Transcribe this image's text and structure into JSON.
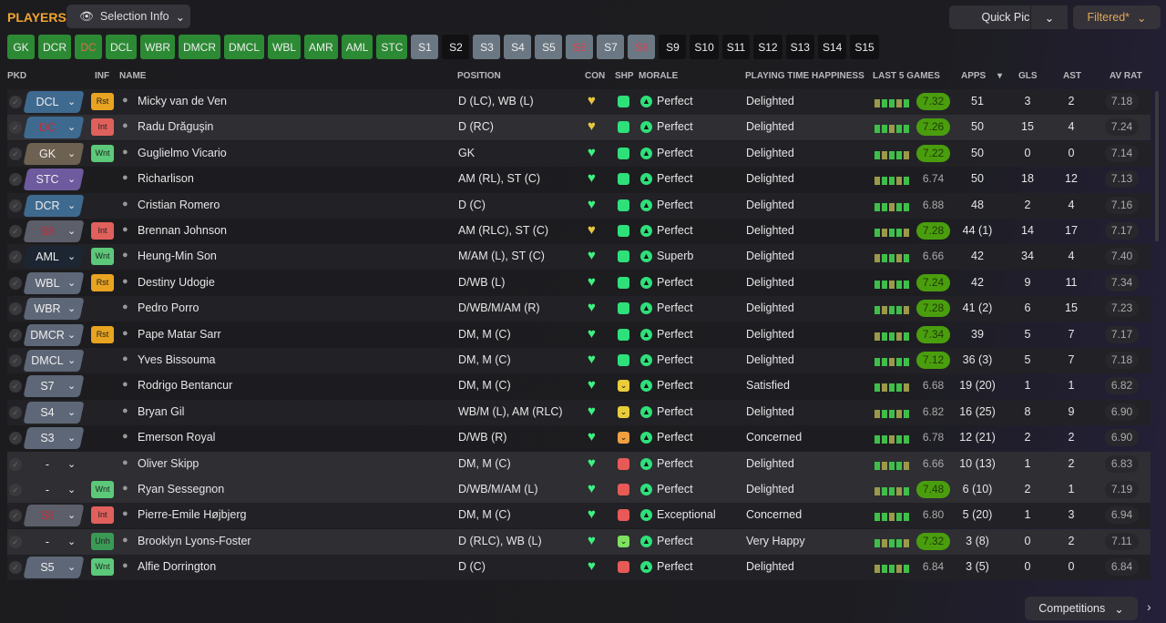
{
  "header": {
    "title": "PLAYERS",
    "selection_info": "Selection Info",
    "quick_pick": "Quick Pick",
    "filtered": "Filtered*",
    "competitions": "Competitions"
  },
  "chips": [
    {
      "label": "GK",
      "style": "g"
    },
    {
      "label": "DCR",
      "style": "g"
    },
    {
      "label": "DC",
      "style": "g",
      "color": "#e06a4a"
    },
    {
      "label": "DCL",
      "style": "g"
    },
    {
      "label": "WBR",
      "style": "g"
    },
    {
      "label": "DMCR",
      "style": "g"
    },
    {
      "label": "DMCL",
      "style": "g"
    },
    {
      "label": "WBL",
      "style": "g"
    },
    {
      "label": "AMR",
      "style": "g"
    },
    {
      "label": "AML",
      "style": "g"
    },
    {
      "label": "STC",
      "style": "g"
    },
    {
      "label": "S1",
      "style": "s"
    },
    {
      "label": "S2",
      "style": "e"
    },
    {
      "label": "S3",
      "style": "s"
    },
    {
      "label": "S4",
      "style": "s"
    },
    {
      "label": "S5",
      "style": "s"
    },
    {
      "label": "S6",
      "style": "s",
      "color": "#e04050"
    },
    {
      "label": "S7",
      "style": "s"
    },
    {
      "label": "S8",
      "style": "s",
      "color": "#e04050"
    },
    {
      "label": "S9",
      "style": "e"
    },
    {
      "label": "S10",
      "style": "e"
    },
    {
      "label": "S11",
      "style": "e"
    },
    {
      "label": "S12",
      "style": "e"
    },
    {
      "label": "S13",
      "style": "e"
    },
    {
      "label": "S14",
      "style": "e"
    },
    {
      "label": "S15",
      "style": "e"
    }
  ],
  "columns": {
    "pkd": "PKD",
    "inf": "INF",
    "name": "NAME",
    "position": "POSITION",
    "con": "CON",
    "shp": "SHP",
    "morale": "MORALE",
    "pth": "PLAYING TIME HAPPINESS",
    "last5": "LAST 5 GAMES",
    "apps": "APPS",
    "gls": "GLS",
    "ast": "AST",
    "avrat": "AV RAT"
  },
  "colors": {
    "accent": "#f2a530",
    "good_pill": "#4a9e0e"
  },
  "players": [
    {
      "pos": "DCL",
      "pos_style": "blue",
      "inf": "Rst",
      "name": "Micky van de Ven",
      "position": "D (LC), WB (L)",
      "con": "yellow",
      "shp": "up",
      "morale": "Perfect",
      "pth": "Delighted",
      "last5": "7.32",
      "l5good": true,
      "apps": "51",
      "gls": "3",
      "ast": "2",
      "avrat": "7.18",
      "avgood": true
    },
    {
      "pos": "DC",
      "pos_style": "blue",
      "pos_red": true,
      "inf": "Int",
      "name": "Radu Drăguşin",
      "position": "D (RC)",
      "con": "yellow",
      "shp": "up",
      "morale": "Perfect",
      "pth": "Delighted",
      "last5": "7.26",
      "l5good": true,
      "apps": "50",
      "gls": "15",
      "ast": "4",
      "avrat": "7.24",
      "avgood": true
    },
    {
      "pos": "GK",
      "pos_style": "gk",
      "inf": "Wnt",
      "name": "Guglielmo Vicario",
      "position": "GK",
      "con": "green",
      "shp": "up",
      "morale": "Perfect",
      "pth": "Delighted",
      "last5": "7.22",
      "l5good": true,
      "apps": "50",
      "gls": "0",
      "ast": "0",
      "avrat": "7.14",
      "avgood": true
    },
    {
      "pos": "STC",
      "pos_style": "purple",
      "inf": "",
      "name": "Richarlison",
      "position": "AM (RL), ST (C)",
      "con": "green",
      "shp": "up",
      "morale": "Perfect",
      "pth": "Delighted",
      "last5": "6.74",
      "l5good": false,
      "apps": "50",
      "gls": "18",
      "ast": "12",
      "avrat": "7.13",
      "avgood": true
    },
    {
      "pos": "DCR",
      "pos_style": "blue",
      "inf": "",
      "name": "Cristian Romero",
      "position": "D (C)",
      "con": "green",
      "shp": "up",
      "morale": "Perfect",
      "pth": "Delighted",
      "last5": "6.88",
      "l5good": false,
      "apps": "48",
      "gls": "2",
      "ast": "4",
      "avrat": "7.16",
      "avgood": true
    },
    {
      "pos": "S8",
      "pos_style": "grey",
      "pos_red": true,
      "inf": "Int",
      "name": "Brennan Johnson",
      "position": "AM (RLC), ST (C)",
      "con": "yellow",
      "shp": "up",
      "morale": "Perfect",
      "pth": "Delighted",
      "last5": "7.28",
      "l5good": true,
      "apps": "44 (1)",
      "gls": "14",
      "ast": "17",
      "avrat": "7.17",
      "avgood": true
    },
    {
      "pos": "AML",
      "pos_style": "dark",
      "inf": "Wnt",
      "name": "Heung-Min Son",
      "position": "M/AM (L), ST (C)",
      "con": "green",
      "shp": "up",
      "morale": "Superb",
      "pth": "Delighted",
      "last5": "6.66",
      "l5good": false,
      "apps": "42",
      "gls": "34",
      "ast": "4",
      "avrat": "7.40",
      "avgood": true
    },
    {
      "pos": "WBL",
      "pos_style": "slate",
      "inf": "Rst",
      "name": "Destiny Udogie",
      "position": "D/WB (L)",
      "con": "green",
      "shp": "up",
      "morale": "Perfect",
      "pth": "Delighted",
      "last5": "7.24",
      "l5good": true,
      "apps": "42",
      "gls": "9",
      "ast": "11",
      "avrat": "7.34",
      "avgood": true
    },
    {
      "pos": "WBR",
      "pos_style": "slate",
      "inf": "",
      "name": "Pedro Porro",
      "position": "D/WB/M/AM (R)",
      "con": "green",
      "shp": "up",
      "morale": "Perfect",
      "pth": "Delighted",
      "last5": "7.28",
      "l5good": true,
      "apps": "41 (2)",
      "gls": "6",
      "ast": "15",
      "avrat": "7.23",
      "avgood": true
    },
    {
      "pos": "DMCR",
      "pos_style": "slate",
      "inf": "Rst",
      "name": "Pape Matar Sarr",
      "position": "DM, M (C)",
      "con": "green",
      "shp": "up",
      "morale": "Perfect",
      "pth": "Delighted",
      "last5": "7.34",
      "l5good": true,
      "apps": "39",
      "gls": "5",
      "ast": "7",
      "avrat": "7.17",
      "avgood": true
    },
    {
      "pos": "DMCL",
      "pos_style": "slate",
      "inf": "",
      "name": "Yves Bissouma",
      "position": "DM, M (C)",
      "con": "green",
      "shp": "up",
      "morale": "Perfect",
      "pth": "Delighted",
      "last5": "7.12",
      "l5good": true,
      "apps": "36 (3)",
      "gls": "5",
      "ast": "7",
      "avrat": "7.18",
      "avgood": true
    },
    {
      "pos": "S7",
      "pos_style": "slate",
      "inf": "",
      "name": "Rodrigo Bentancur",
      "position": "DM, M (C)",
      "con": "green",
      "shp": "yellow",
      "morale": "Perfect",
      "pth": "Satisfied",
      "last5": "6.68",
      "l5good": false,
      "apps": "19 (20)",
      "gls": "1",
      "ast": "1",
      "avrat": "6.82",
      "avgood": false
    },
    {
      "pos": "S4",
      "pos_style": "slate",
      "inf": "",
      "name": "Bryan Gil",
      "position": "WB/M (L), AM (RLC)",
      "con": "green",
      "shp": "yellow",
      "morale": "Perfect",
      "pth": "Delighted",
      "last5": "6.82",
      "l5good": false,
      "apps": "16 (25)",
      "gls": "8",
      "ast": "9",
      "avrat": "6.90",
      "avgood": false
    },
    {
      "pos": "S3",
      "pos_style": "slate",
      "inf": "",
      "name": "Emerson Royal",
      "position": "D/WB (R)",
      "con": "green",
      "shp": "orange",
      "morale": "Perfect",
      "pth": "Concerned",
      "last5": "6.78",
      "l5good": false,
      "apps": "12 (21)",
      "gls": "2",
      "ast": "2",
      "avrat": "6.90",
      "avgood": false
    },
    {
      "pos": "-",
      "pos_style": "none",
      "inf": "",
      "name": "Oliver Skipp",
      "position": "DM, M (C)",
      "con": "green",
      "shp": "down",
      "morale": "Perfect",
      "pth": "Delighted",
      "last5": "6.66",
      "l5good": false,
      "apps": "10 (13)",
      "gls": "1",
      "ast": "2",
      "avrat": "6.83",
      "avgood": false
    },
    {
      "pos": "-",
      "pos_style": "none",
      "inf": "Wnt",
      "name": "Ryan Sessegnon",
      "position": "D/WB/M/AM (L)",
      "con": "green",
      "shp": "down",
      "morale": "Perfect",
      "pth": "Delighted",
      "last5": "7.48",
      "l5good": true,
      "apps": "6 (10)",
      "gls": "2",
      "ast": "1",
      "avrat": "7.19",
      "avgood": true
    },
    {
      "pos": "S6",
      "pos_style": "grey",
      "pos_red": true,
      "inf": "Int",
      "name": "Pierre-Emile Højbjerg",
      "position": "DM, M (C)",
      "con": "green",
      "shp": "down",
      "morale": "Exceptional",
      "pth": "Concerned",
      "last5": "6.80",
      "l5good": false,
      "apps": "5 (20)",
      "gls": "1",
      "ast": "3",
      "avrat": "6.94",
      "avgood": false
    },
    {
      "pos": "-",
      "pos_style": "none",
      "inf": "Unh",
      "name": "Brooklyn Lyons-Foster",
      "position": "D (RLC), WB (L)",
      "con": "green",
      "shp": "lightgreen",
      "morale": "Perfect",
      "pth": "Very Happy",
      "last5": "7.32",
      "l5good": true,
      "apps": "3 (8)",
      "gls": "0",
      "ast": "2",
      "avrat": "7.11",
      "avgood": true
    },
    {
      "pos": "S5",
      "pos_style": "slate",
      "inf": "Wnt",
      "name": "Alfie Dorrington",
      "position": "D (C)",
      "con": "green",
      "shp": "down",
      "morale": "Perfect",
      "pth": "Delighted",
      "last5": "6.84",
      "l5good": false,
      "apps": "3 (5)",
      "gls": "0",
      "ast": "0",
      "avrat": "6.84",
      "avgood": false
    }
  ]
}
